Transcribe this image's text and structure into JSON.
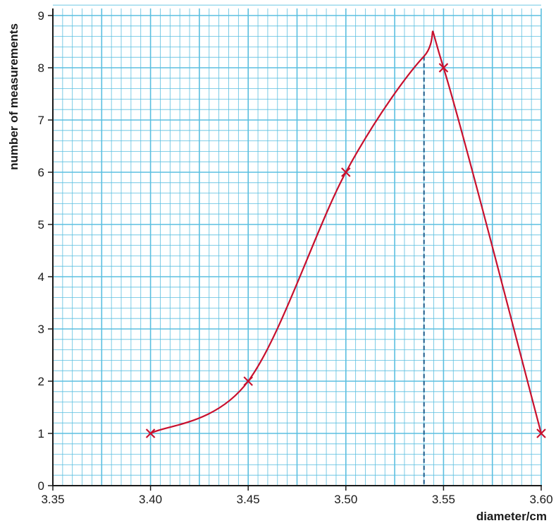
{
  "chart_data": {
    "type": "scatter",
    "xlabel": "diameter/cm",
    "ylabel": "number of measurements",
    "xlim": [
      3.35,
      3.6
    ],
    "ylim": [
      0,
      9
    ],
    "x_ticks": [
      "3.35",
      "3.40",
      "3.45",
      "3.50",
      "3.55",
      "3.60"
    ],
    "y_ticks": [
      "0",
      "1",
      "2",
      "3",
      "4",
      "5",
      "6",
      "7",
      "8",
      "9"
    ],
    "grid": true,
    "series": [
      {
        "x": [
          3.4,
          3.45,
          3.5,
          3.55,
          3.6
        ],
        "y": [
          1,
          2,
          6,
          8,
          1
        ],
        "marker": "cross",
        "curve": "smooth"
      }
    ],
    "peak": {
      "x": 3.54,
      "y": 8.22
    },
    "marker_line_x": 3.54,
    "colors": {
      "grid": "#5bbfe0",
      "curve": "#c8102e",
      "dashed": "#1b5a8a",
      "axis": "#1a1a1a"
    }
  }
}
